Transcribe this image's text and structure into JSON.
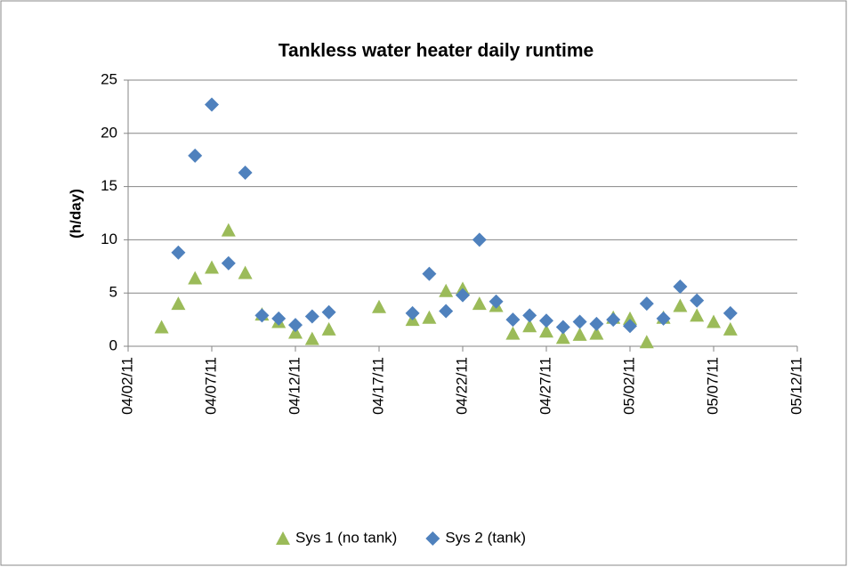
{
  "chart_data": {
    "type": "scatter",
    "title": "Tankless water heater daily runtime",
    "y_label": "(h/day)",
    "xlim": [
      "04/02/11",
      "05/12/11"
    ],
    "xticks": [
      "04/02/11",
      "04/07/11",
      "04/12/11",
      "04/17/11",
      "04/22/11",
      "04/27/11",
      "05/02/11",
      "05/07/11",
      "05/12/11"
    ],
    "ylim": [
      0,
      25
    ],
    "yticks": [
      0,
      5,
      10,
      15,
      20,
      25
    ],
    "grid": true,
    "legend": "bottom",
    "series": [
      {
        "name": "Sys 1 (no tank)",
        "color": "#9bbb59",
        "marker": "triangle",
        "x": [
          "04/04/11",
          "04/05/11",
          "04/06/11",
          "04/07/11",
          "04/08/11",
          "04/09/11",
          "04/10/11",
          "04/11/11",
          "04/12/11",
          "04/13/11",
          "04/14/11",
          "04/17/11",
          "04/19/11",
          "04/20/11",
          "04/21/11",
          "04/22/11",
          "04/23/11",
          "04/24/11",
          "04/25/11",
          "04/26/11",
          "04/27/11",
          "04/28/11",
          "04/29/11",
          "04/30/11",
          "05/01/11",
          "05/02/11",
          "05/03/11",
          "05/04/11",
          "05/05/11",
          "05/06/11",
          "05/07/11",
          "05/08/11"
        ],
        "values": [
          1.8,
          4.0,
          6.4,
          7.4,
          10.9,
          6.9,
          3.0,
          2.3,
          1.3,
          0.7,
          1.6,
          3.7,
          2.5,
          2.7,
          5.2,
          5.4,
          4.0,
          3.8,
          1.2,
          1.9,
          1.4,
          0.8,
          1.1,
          1.2,
          2.7,
          2.6,
          0.4,
          2.7,
          3.8,
          2.9,
          2.3,
          1.6
        ]
      },
      {
        "name": "Sys 2 (tank)",
        "color": "#4f81bd",
        "marker": "diamond",
        "x": [
          "04/05/11",
          "04/06/11",
          "04/07/11",
          "04/08/11",
          "04/09/11",
          "04/10/11",
          "04/11/11",
          "04/12/11",
          "04/13/11",
          "04/14/11",
          "04/19/11",
          "04/20/11",
          "04/21/11",
          "04/22/11",
          "04/23/11",
          "04/24/11",
          "04/25/11",
          "04/26/11",
          "04/27/11",
          "04/28/11",
          "04/29/11",
          "04/30/11",
          "05/01/11",
          "05/02/11",
          "05/03/11",
          "05/04/11",
          "05/05/11",
          "05/06/11",
          "05/08/11"
        ],
        "values": [
          8.8,
          17.9,
          22.7,
          7.8,
          16.3,
          2.9,
          2.6,
          2.0,
          2.8,
          3.2,
          3.1,
          6.8,
          3.3,
          4.8,
          10.0,
          4.2,
          2.5,
          2.9,
          2.4,
          1.8,
          2.3,
          2.1,
          2.5,
          1.9,
          4.0,
          2.6,
          5.6,
          4.3,
          3.1
        ]
      }
    ]
  }
}
